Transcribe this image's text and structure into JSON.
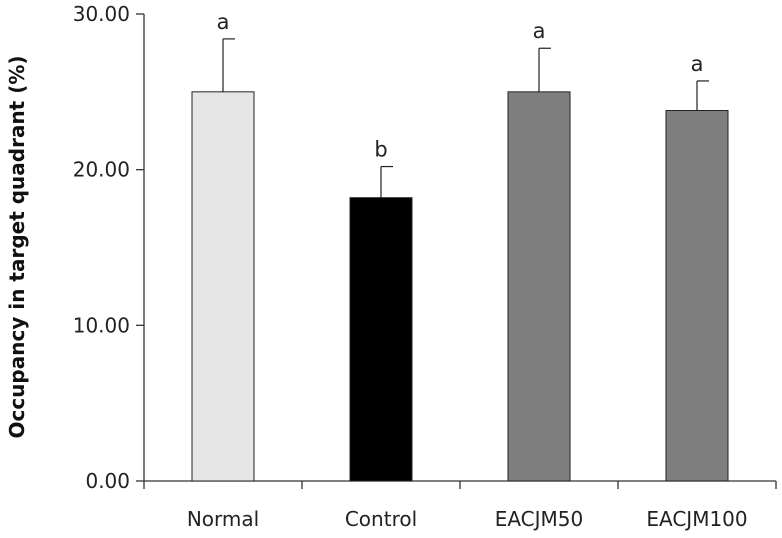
{
  "chart_data": {
    "type": "bar",
    "title": "",
    "xlabel": "",
    "ylabel": "Occupancy in target quadrant (%)",
    "ylim": [
      0,
      30
    ],
    "yticks": [
      0,
      10,
      20,
      30
    ],
    "ytick_labels": [
      "0.00",
      "10.00",
      "20.00",
      "30.00"
    ],
    "grid": false,
    "legend": "none",
    "categories": [
      "Normal",
      "Control",
      "EACJM50",
      "EACJM100"
    ],
    "values": [
      25.0,
      18.2,
      25.0,
      23.8
    ],
    "errors": [
      3.4,
      2.0,
      2.8,
      1.9
    ],
    "significance": [
      "a",
      "b",
      "a",
      "a"
    ],
    "colors": [
      "#e6e6e6",
      "#000000",
      "#7f7f7f",
      "#7f7f7f"
    ]
  }
}
